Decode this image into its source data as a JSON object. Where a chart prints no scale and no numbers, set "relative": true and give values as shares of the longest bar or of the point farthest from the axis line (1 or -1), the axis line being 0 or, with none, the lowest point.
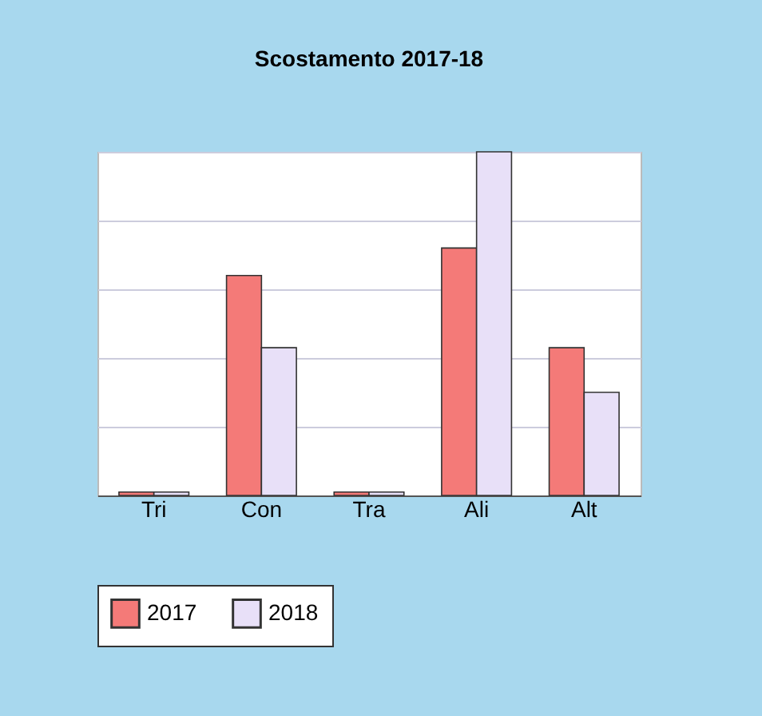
{
  "chart_data": {
    "type": "bar",
    "title": "Scostamento 2017-18",
    "relative": true,
    "legend": "bottom",
    "grid": "y",
    "categories": [
      "Tri",
      "Con",
      "Tra",
      "Ali",
      "Alt"
    ],
    "series": [
      {
        "name": "2017",
        "color": "#f47a78",
        "values": [
          0.01,
          0.64,
          0.01,
          0.72,
          0.43
        ]
      },
      {
        "name": "2018",
        "color": "#e8e0f8",
        "values": [
          0.01,
          0.43,
          0.01,
          1,
          0.3
        ]
      }
    ]
  }
}
